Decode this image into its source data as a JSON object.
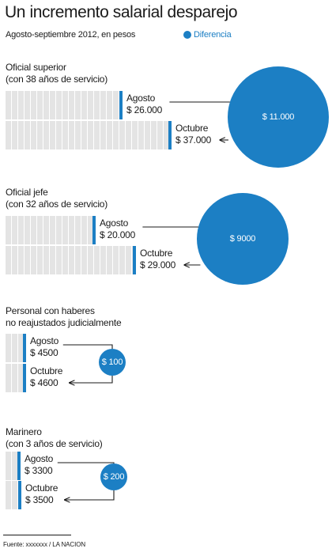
{
  "title": "Un incremento salarial desparejo",
  "subtitle": "Agosto-septiembre 2012, en pesos",
  "legend": {
    "label": "Diferencia",
    "color": "#1c7fc4"
  },
  "source": "Fuente: xxxxxxx / LA NACION",
  "chart_data": {
    "type": "bar",
    "title": "Un incremento salarial desparejo",
    "subtitle": "Agosto-septiembre 2012, en pesos",
    "legend": [
      "Diferencia"
    ],
    "colors": {
      "bar_cap": "#1c7fc4",
      "bar_fill": "#e4e4e4",
      "circle": "#1c7fc4"
    },
    "groups": [
      {
        "label_lines": [
          "Oficial superior",
          "(con 38 años de servicio)"
        ],
        "bars": [
          {
            "name": "Agosto",
            "label": "$ 26.000",
            "value": 26000
          },
          {
            "name": "Octubre",
            "label": "$ 37.000",
            "value": 37000
          }
        ],
        "difference": {
          "label": "$ 11.000",
          "value": 11000
        }
      },
      {
        "label_lines": [
          "Oficial jefe",
          "(con 32 años de servicio)"
        ],
        "bars": [
          {
            "name": "Agosto",
            "label": "$ 20.000",
            "value": 20000
          },
          {
            "name": "Octubre",
            "label": "$ 29.000",
            "value": 29000
          }
        ],
        "difference": {
          "label": "$ 9000",
          "value": 9000
        }
      },
      {
        "label_lines": [
          "Personal con haberes",
          "no reajustados judicialmente"
        ],
        "bars": [
          {
            "name": "Agosto",
            "label": "$ 4500",
            "value": 4500
          },
          {
            "name": "Octubre",
            "label": "$ 4600",
            "value": 4600
          }
        ],
        "difference": {
          "label": "$ 100",
          "value": 100
        }
      },
      {
        "label_lines": [
          "Marinero",
          "(con 3 años de servicio)"
        ],
        "bars": [
          {
            "name": "Agosto",
            "label": "$ 3300",
            "value": 3300
          },
          {
            "name": "Octubre",
            "label": "$ 3500",
            "value": 3500
          }
        ],
        "difference": {
          "label": "$ 200",
          "value": 200
        }
      }
    ]
  }
}
